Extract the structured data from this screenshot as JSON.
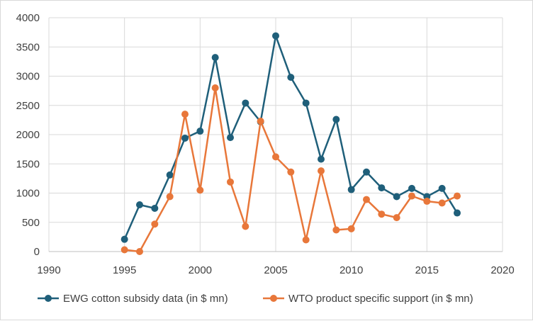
{
  "chart_data": {
    "type": "line",
    "title": "",
    "xlabel": "",
    "ylabel": "",
    "xlim": [
      1990,
      2020
    ],
    "ylim": [
      0,
      4000
    ],
    "xticks": [
      1990,
      1995,
      2000,
      2005,
      2010,
      2015,
      2020
    ],
    "yticks": [
      0,
      500,
      1000,
      1500,
      2000,
      2500,
      3000,
      3500,
      4000
    ],
    "grid": true,
    "legend_position": "bottom",
    "series": [
      {
        "name": "EWG cotton subsidy data (in $ mn)",
        "color": "#1f5f7a",
        "x": [
          1995,
          1996,
          1997,
          1998,
          1999,
          2000,
          2001,
          2002,
          2003,
          2004,
          2005,
          2006,
          2007,
          2008,
          2009,
          2010,
          2011,
          2012,
          2013,
          2014,
          2015,
          2016,
          2017
        ],
        "y": [
          210,
          800,
          740,
          1310,
          1940,
          2060,
          3320,
          1950,
          2540,
          2220,
          3690,
          2980,
          2540,
          1580,
          2260,
          1060,
          1360,
          1090,
          940,
          1080,
          940,
          1080,
          660
        ]
      },
      {
        "name": "WTO product specific support (in $ mn)",
        "color": "#e8773a",
        "x": [
          1995,
          1996,
          1997,
          1998,
          1999,
          2000,
          2001,
          2002,
          2003,
          2004,
          2005,
          2006,
          2007,
          2008,
          2009,
          2010,
          2011,
          2012,
          2013,
          2014,
          2015,
          2016,
          2017
        ],
        "y": [
          30,
          0,
          470,
          940,
          2350,
          1050,
          2800,
          1190,
          430,
          2230,
          1620,
          1360,
          200,
          1380,
          370,
          390,
          890,
          640,
          580,
          950,
          860,
          830,
          950
        ]
      }
    ]
  }
}
